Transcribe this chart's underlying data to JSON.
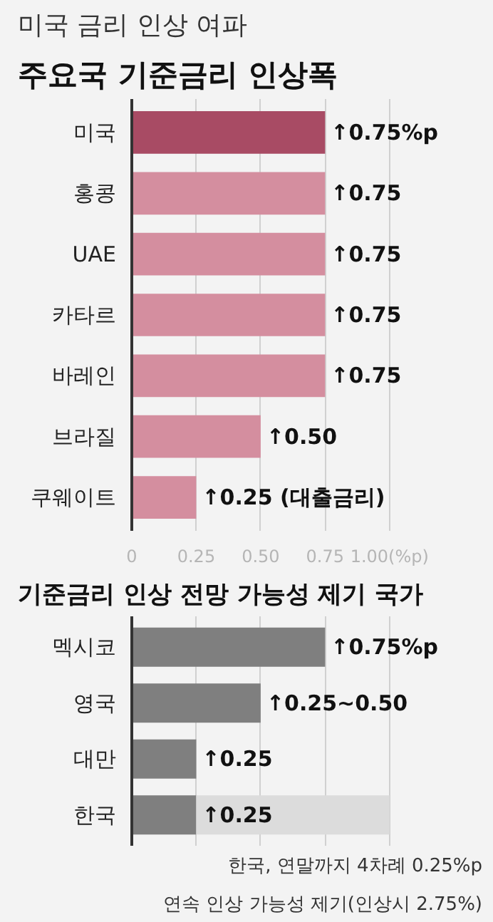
{
  "chart_data": [
    {
      "type": "bar",
      "orientation": "horizontal",
      "title": "미국 금리 인상 여파",
      "subtitle": "주요국 기준금리 인상폭",
      "categories": [
        "미국",
        "홍콩",
        "UAE",
        "카타르",
        "바레인",
        "브라질",
        "쿠웨이트"
      ],
      "values": [
        0.75,
        0.75,
        0.75,
        0.75,
        0.75,
        0.5,
        0.25
      ],
      "colors": [
        "#a84b64",
        "#d48e9f",
        "#d48e9f",
        "#d48e9f",
        "#d48e9f",
        "#d48e9f",
        "#d48e9f"
      ],
      "value_labels": [
        "↑0.75%p",
        "↑0.75",
        "↑0.75",
        "↑0.75",
        "↑0.75",
        "↑0.50",
        "↑0.25 (대출금리)"
      ],
      "xlim": [
        0,
        1
      ],
      "xticks": [
        0,
        0.25,
        {
          "value": 0.5,
          "label": "0.50"
        },
        0.75,
        {
          "value": 1,
          "label": "1.00(%p)"
        }
      ],
      "grid": "x"
    },
    {
      "type": "bar",
      "orientation": "horizontal",
      "stacked": true,
      "title": "기준금리 인상 전망 가능성 제기 국가",
      "categories": [
        "멕시코",
        "영국",
        "대만",
        "한국"
      ],
      "series": [
        {
          "color": "#7f7f7f",
          "values": [
            0.75,
            0.5,
            0.25,
            0.25
          ],
          "value_labels": [
            "↑0.75%p",
            "↑0.25~0.50",
            "↑0.25",
            "↑0.25"
          ]
        },
        {
          "color": "#dcdcdc",
          "values": [
            null,
            null,
            null,
            0.75
          ]
        }
      ],
      "xlim": [
        0,
        1
      ],
      "xticks": [
        0,
        0.25,
        0.5,
        0.75,
        1
      ],
      "tick_labels": false,
      "grid": "x",
      "annotations": [
        "한국, 연말까지 4차례 0.25%p",
        "연속 인상 가능성 제기(인상시 2.75%)"
      ]
    }
  ]
}
